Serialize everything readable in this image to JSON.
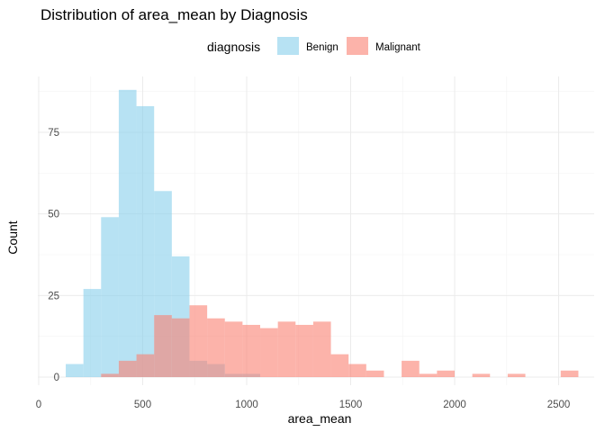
{
  "chart_data": {
    "type": "bar",
    "title": "Distribution of area_mean by Diagnosis",
    "xlabel": "area_mean",
    "ylabel": "Count",
    "legend": {
      "title": "diagnosis",
      "placement": "top",
      "entries": [
        "Benign",
        "Malignant"
      ]
    },
    "xlim": [
      0,
      2650
    ],
    "ylim": [
      0,
      92
    ],
    "x_ticks": [
      0,
      500,
      1000,
      1500,
      2000,
      2500
    ],
    "y_ticks": [
      0,
      25,
      50,
      75
    ],
    "bin_width": 85,
    "grid": true,
    "series": [
      {
        "name": "Benign",
        "color": "#87CEEB",
        "bin_starts": [
          130,
          215,
          300,
          385,
          470,
          555,
          640,
          725,
          810,
          895,
          980
        ],
        "values": [
          4,
          27,
          49,
          88,
          83,
          57,
          37,
          5,
          4,
          1,
          1
        ]
      },
      {
        "name": "Malignant",
        "color": "#FA8072",
        "bin_starts": [
          300,
          385,
          470,
          555,
          640,
          725,
          810,
          895,
          980,
          1065,
          1150,
          1235,
          1320,
          1405,
          1490,
          1575,
          1660,
          1745,
          1830,
          1915,
          2000,
          2085,
          2170,
          2255,
          2340,
          2425,
          2510
        ],
        "values": [
          1,
          5,
          7,
          19,
          18,
          22,
          18,
          17,
          16,
          15,
          17,
          16,
          17,
          7,
          4,
          2,
          0,
          5,
          1,
          2,
          0,
          1,
          0,
          1,
          0,
          0,
          2
        ]
      }
    ]
  }
}
